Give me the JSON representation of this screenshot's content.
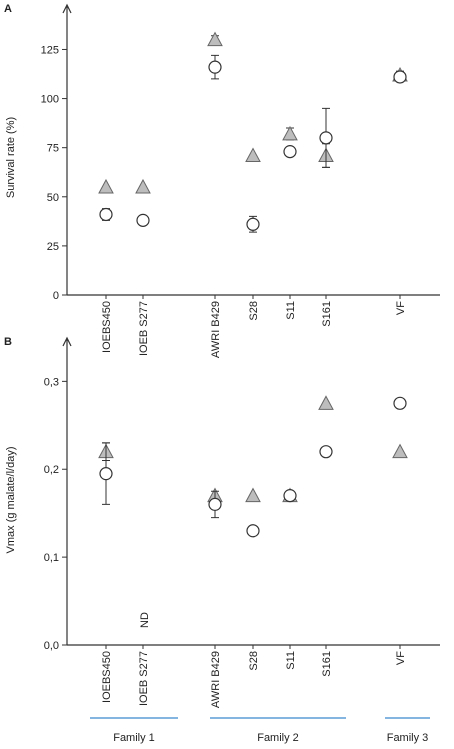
{
  "chart_data": [
    {
      "type": "scatter",
      "panel": "A",
      "ylabel": "Survival rate (%)",
      "categories": [
        "IOEBS450",
        "IOEB S277",
        "AWRI B429",
        "S28",
        "S11",
        "S161",
        "VF"
      ],
      "ylim": [
        0,
        140
      ],
      "yticks": [
        0,
        25,
        50,
        75,
        100,
        125
      ],
      "series": [
        {
          "marker": "triangle",
          "color": "#bdbdbd",
          "values": [
            55,
            55,
            130,
            71,
            82,
            71,
            112
          ],
          "errors": [
            null,
            null,
            2,
            null,
            3,
            6,
            2
          ]
        },
        {
          "marker": "circle",
          "color": "#ffffff",
          "values": [
            41,
            38,
            116,
            36,
            73,
            80,
            111
          ],
          "errors": [
            3,
            null,
            6,
            4,
            2,
            15,
            null
          ]
        }
      ]
    },
    {
      "type": "scatter",
      "panel": "B",
      "ylabel": "Vmax (g malate/l/day)",
      "categories": [
        "IOEBS450",
        "IOEB S277",
        "AWRI B429",
        "S28",
        "S11",
        "S161",
        "VF"
      ],
      "ylim": [
        0,
        0.33
      ],
      "yticks": [
        {
          "value": 0,
          "label": "0,0"
        },
        {
          "value": 0.1,
          "label": "0,1"
        },
        {
          "value": 0.2,
          "label": "0,2"
        },
        {
          "value": 0.3,
          "label": "0,3"
        }
      ],
      "series": [
        {
          "marker": "triangle",
          "color": "#bdbdbd",
          "values": [
            0.22,
            null,
            0.17,
            0.17,
            0.17,
            0.275,
            0.22
          ],
          "errors": [
            0.01,
            null,
            null,
            null,
            null,
            null,
            null
          ]
        },
        {
          "marker": "circle",
          "color": "#ffffff",
          "values": [
            0.195,
            null,
            0.16,
            0.13,
            0.17,
            0.22,
            0.275
          ],
          "errors": [
            0.035,
            null,
            0.015,
            null,
            null,
            null,
            null
          ]
        }
      ],
      "annotation": "ND",
      "groups": [
        "Family 1",
        "Family 2",
        "Family 3"
      ]
    }
  ]
}
